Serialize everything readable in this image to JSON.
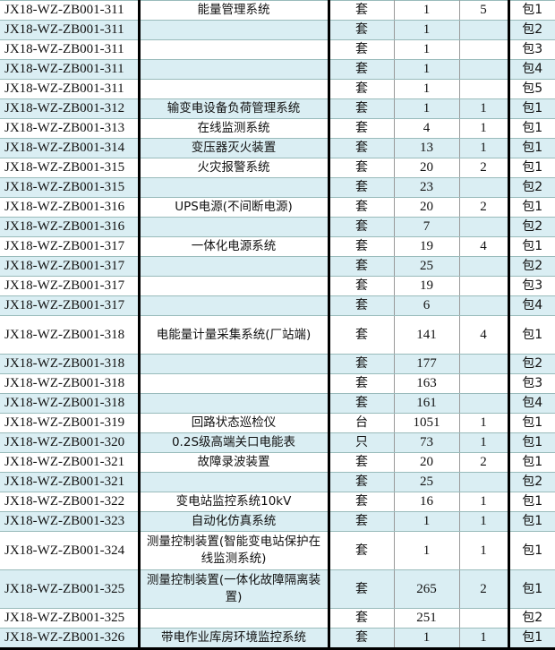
{
  "rows": [
    {
      "code": "JX18-WZ-ZB001-311",
      "name": "能量管理系统",
      "unit": "套",
      "qty": "1",
      "count": "5",
      "pkg": "包1"
    },
    {
      "code": "JX18-WZ-ZB001-311",
      "name": "",
      "unit": "套",
      "qty": "1",
      "count": "",
      "pkg": "包2"
    },
    {
      "code": "JX18-WZ-ZB001-311",
      "name": "",
      "unit": "套",
      "qty": "1",
      "count": "",
      "pkg": "包3"
    },
    {
      "code": "JX18-WZ-ZB001-311",
      "name": "",
      "unit": "套",
      "qty": "1",
      "count": "",
      "pkg": "包4"
    },
    {
      "code": "JX18-WZ-ZB001-311",
      "name": "",
      "unit": "套",
      "qty": "1",
      "count": "",
      "pkg": "包5"
    },
    {
      "code": "JX18-WZ-ZB001-312",
      "name": "输变电设备负荷管理系统",
      "unit": "套",
      "qty": "1",
      "count": "1",
      "pkg": "包1"
    },
    {
      "code": "JX18-WZ-ZB001-313",
      "name": "在线监测系统",
      "unit": "套",
      "qty": "4",
      "count": "1",
      "pkg": "包1"
    },
    {
      "code": "JX18-WZ-ZB001-314",
      "name": "变压器灭火装置",
      "unit": "套",
      "qty": "13",
      "count": "1",
      "pkg": "包1"
    },
    {
      "code": "JX18-WZ-ZB001-315",
      "name": "火灾报警系统",
      "unit": "套",
      "qty": "20",
      "count": "2",
      "pkg": "包1"
    },
    {
      "code": "JX18-WZ-ZB001-315",
      "name": "",
      "unit": "套",
      "qty": "23",
      "count": "",
      "pkg": "包2"
    },
    {
      "code": "JX18-WZ-ZB001-316",
      "name": "UPS电源(不间断电源)",
      "unit": "套",
      "qty": "20",
      "count": "2",
      "pkg": "包1"
    },
    {
      "code": "JX18-WZ-ZB001-316",
      "name": "",
      "unit": "套",
      "qty": "7",
      "count": "",
      "pkg": "包2"
    },
    {
      "code": "JX18-WZ-ZB001-317",
      "name": "一体化电源系统",
      "unit": "套",
      "qty": "19",
      "count": "4",
      "pkg": "包1"
    },
    {
      "code": "JX18-WZ-ZB001-317",
      "name": "",
      "unit": "套",
      "qty": "25",
      "count": "",
      "pkg": "包2"
    },
    {
      "code": "JX18-WZ-ZB001-317",
      "name": "",
      "unit": "套",
      "qty": "19",
      "count": "",
      "pkg": "包3"
    },
    {
      "code": "JX18-WZ-ZB001-317",
      "name": "",
      "unit": "套",
      "qty": "6",
      "count": "",
      "pkg": "包4"
    },
    {
      "code": "JX18-WZ-ZB001-318",
      "name": "电能量计量采集系统(厂站端)",
      "unit": "套",
      "qty": "141",
      "count": "4",
      "pkg": "包1",
      "tall": true
    },
    {
      "code": "JX18-WZ-ZB001-318",
      "name": "",
      "unit": "套",
      "qty": "177",
      "count": "",
      "pkg": "包2"
    },
    {
      "code": "JX18-WZ-ZB001-318",
      "name": "",
      "unit": "套",
      "qty": "163",
      "count": "",
      "pkg": "包3"
    },
    {
      "code": "JX18-WZ-ZB001-318",
      "name": "",
      "unit": "套",
      "qty": "161",
      "count": "",
      "pkg": "包4"
    },
    {
      "code": "JX18-WZ-ZB001-319",
      "name": "回路状态巡检仪",
      "unit": "台",
      "qty": "1051",
      "count": "1",
      "pkg": "包1"
    },
    {
      "code": "JX18-WZ-ZB001-320",
      "name": "0.2S级高端关口电能表",
      "unit": "只",
      "qty": "73",
      "count": "1",
      "pkg": "包1"
    },
    {
      "code": "JX18-WZ-ZB001-321",
      "name": "故障录波装置",
      "unit": "套",
      "qty": "20",
      "count": "2",
      "pkg": "包1"
    },
    {
      "code": "JX18-WZ-ZB001-321",
      "name": "",
      "unit": "套",
      "qty": "25",
      "count": "",
      "pkg": "包2"
    },
    {
      "code": "JX18-WZ-ZB001-322",
      "name": "变电站监控系统10kV",
      "unit": "套",
      "qty": "16",
      "count": "1",
      "pkg": "包1"
    },
    {
      "code": "JX18-WZ-ZB001-323",
      "name": "自动化仿真系统",
      "unit": "套",
      "qty": "1",
      "count": "1",
      "pkg": "包1"
    },
    {
      "code": "JX18-WZ-ZB001-324",
      "name": "测量控制装置(智能变电站保护在线监测系统)",
      "unit": "套",
      "qty": "1",
      "count": "1",
      "pkg": "包1",
      "tall": true
    },
    {
      "code": "JX18-WZ-ZB001-325",
      "name": "测量控制装置(一体化故障隔离装置)",
      "unit": "套",
      "qty": "265",
      "count": "2",
      "pkg": "包1",
      "tall": true
    },
    {
      "code": "JX18-WZ-ZB001-325",
      "name": "",
      "unit": "套",
      "qty": "251",
      "count": "",
      "pkg": "包2"
    },
    {
      "code": "JX18-WZ-ZB001-326",
      "name": "带电作业库房环境监控系统",
      "unit": "套",
      "qty": "1",
      "count": "1",
      "pkg": "包1"
    }
  ],
  "colors": {
    "alt_row": "#DAEEF3",
    "border": "#000000"
  }
}
